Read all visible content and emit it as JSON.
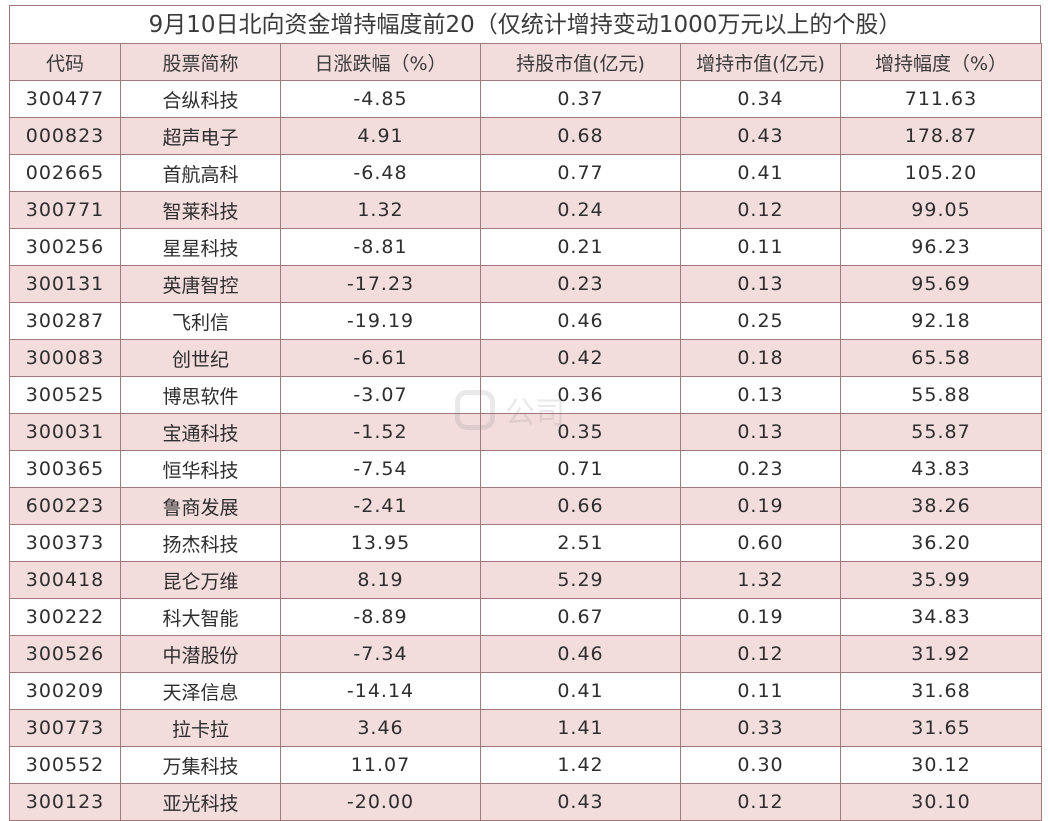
{
  "title": "9月10日北向资金增持幅度前20（仅统计增持变动1000万元以上的个股）",
  "headers": [
    "代码",
    "股票简称",
    "日涨跌幅（%）",
    "持股市值(亿元)",
    "增持市值(亿元)",
    "增持幅度（%）"
  ],
  "rows": [
    [
      "300477",
      "合纵科技",
      "-4.85",
      "0.37",
      "0.34",
      "711.63"
    ],
    [
      "000823",
      "超声电子",
      "4.91",
      "0.68",
      "0.43",
      "178.87"
    ],
    [
      "002665",
      "首航高科",
      "-6.48",
      "0.77",
      "0.41",
      "105.20"
    ],
    [
      "300771",
      "智莱科技",
      "1.32",
      "0.24",
      "0.12",
      "99.05"
    ],
    [
      "300256",
      "星星科技",
      "-8.81",
      "0.21",
      "0.11",
      "96.23"
    ],
    [
      "300131",
      "英唐智控",
      "-17.23",
      "0.23",
      "0.13",
      "95.69"
    ],
    [
      "300287",
      "飞利信",
      "-19.19",
      "0.46",
      "0.25",
      "92.18"
    ],
    [
      "300083",
      "创世纪",
      "-6.61",
      "0.42",
      "0.18",
      "65.58"
    ],
    [
      "300525",
      "博思软件",
      "-3.07",
      "0.36",
      "0.13",
      "55.88"
    ],
    [
      "300031",
      "宝通科技",
      "-1.52",
      "0.35",
      "0.13",
      "55.87"
    ],
    [
      "300365",
      "恒华科技",
      "-7.54",
      "0.71",
      "0.23",
      "43.83"
    ],
    [
      "600223",
      "鲁商发展",
      "-2.41",
      "0.66",
      "0.19",
      "38.26"
    ],
    [
      "300373",
      "扬杰科技",
      "13.95",
      "2.51",
      "0.60",
      "36.20"
    ],
    [
      "300418",
      "昆仑万维",
      "8.19",
      "5.29",
      "1.32",
      "35.99"
    ],
    [
      "300222",
      "科大智能",
      "-8.89",
      "0.67",
      "0.19",
      "34.83"
    ],
    [
      "300526",
      "中潜股份",
      "-7.34",
      "0.46",
      "0.12",
      "31.92"
    ],
    [
      "300209",
      "天泽信息",
      "-14.14",
      "0.41",
      "0.11",
      "31.68"
    ],
    [
      "300773",
      "拉卡拉",
      "3.46",
      "1.41",
      "0.33",
      "31.65"
    ],
    [
      "300552",
      "万集科技",
      "11.07",
      "1.42",
      "0.30",
      "30.12"
    ],
    [
      "300123",
      "亚光科技",
      "-20.00",
      "0.43",
      "0.12",
      "30.10"
    ]
  ],
  "watermark": {
    "text": "公司",
    "icon": "logo-icon"
  },
  "colors": {
    "header_bg": "#f2dcdc",
    "alt_row_bg": "#f2dcdc",
    "border": "#a07a7a"
  }
}
